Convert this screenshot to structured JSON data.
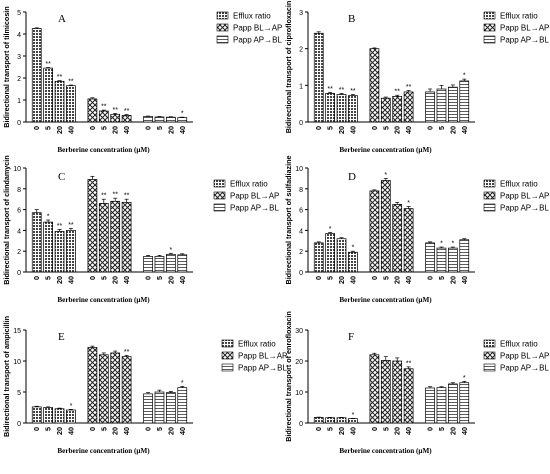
{
  "figure": {
    "legend_labels": [
      "Efflux ratio",
      "Papp BL→AP",
      "Papp AP→BL"
    ],
    "group_names": [
      "Efflux ratio",
      "Papp BL→AP",
      "Papp AP→BL"
    ]
  },
  "chart_data": [
    {
      "type": "bar",
      "panel_letter": "A",
      "ylabel": "Bidirectional transport of tilmicosin",
      "xlabel": "Berberine concentration (μM)",
      "categories": [
        "0",
        "5",
        "20",
        "40"
      ],
      "ylim": [
        0,
        5
      ],
      "yticks": [
        0,
        1,
        2,
        3,
        4,
        5
      ],
      "series": [
        {
          "name": "Efflux ratio",
          "values": [
            4.25,
            2.45,
            1.85,
            1.65
          ],
          "errors": [
            0.03,
            0.03,
            0.03,
            0.03
          ],
          "marks": [
            "",
            "**",
            "**",
            "**"
          ]
        },
        {
          "name": "Papp BL→AP",
          "values": [
            1.05,
            0.5,
            0.35,
            0.3
          ],
          "errors": [
            0.05,
            0.04,
            0.04,
            0.04
          ],
          "marks": [
            "",
            "**",
            "**",
            "**"
          ]
        },
        {
          "name": "Papp AP→BL",
          "values": [
            0.25,
            0.23,
            0.22,
            0.2
          ],
          "errors": [
            0.02,
            0.02,
            0.02,
            0.02
          ],
          "marks": [
            "",
            "",
            "",
            "*"
          ]
        }
      ]
    },
    {
      "type": "bar",
      "panel_letter": "B",
      "ylabel": "Bidirectional transport of ciprofloxacin",
      "xlabel": "Berberine concentration (μM)",
      "categories": [
        "0",
        "5",
        "20",
        "40"
      ],
      "ylim": [
        0,
        3
      ],
      "yticks": [
        0,
        1,
        2,
        3
      ],
      "series": [
        {
          "name": "Efflux ratio",
          "values": [
            2.42,
            0.78,
            0.75,
            0.72
          ],
          "errors": [
            0.04,
            0.03,
            0.03,
            0.03
          ],
          "marks": [
            "",
            "**",
            "**",
            "**"
          ]
        },
        {
          "name": "Papp BL→AP",
          "values": [
            2.0,
            0.65,
            0.7,
            0.82
          ],
          "errors": [
            0.02,
            0.03,
            0.03,
            0.04
          ],
          "marks": [
            "",
            "",
            "**",
            "**"
          ]
        },
        {
          "name": "Papp AP→BL",
          "values": [
            0.82,
            0.9,
            0.95,
            1.12
          ],
          "errors": [
            0.08,
            0.1,
            0.06,
            0.05
          ],
          "marks": [
            "",
            "",
            "",
            "*"
          ]
        }
      ]
    },
    {
      "type": "bar",
      "panel_letter": "C",
      "ylabel": "Bidirectional transport of clindamycin",
      "xlabel": "Berberine concentration (μM)",
      "categories": [
        "0",
        "5",
        "20",
        "40"
      ],
      "ylim": [
        0,
        10
      ],
      "yticks": [
        0,
        2,
        4,
        6,
        8,
        10
      ],
      "series": [
        {
          "name": "Efflux ratio",
          "values": [
            5.7,
            4.8,
            3.9,
            4.0
          ],
          "errors": [
            0.3,
            0.2,
            0.2,
            0.2
          ],
          "marks": [
            "",
            "*",
            "**",
            "**"
          ]
        },
        {
          "name": "Papp BL→AP",
          "values": [
            8.9,
            6.6,
            6.8,
            6.7
          ],
          "errors": [
            0.3,
            0.4,
            0.3,
            0.3
          ],
          "marks": [
            "",
            "**",
            "**",
            "**"
          ]
        },
        {
          "name": "Papp AP→BL",
          "values": [
            1.5,
            1.5,
            1.7,
            1.65
          ],
          "errors": [
            0.1,
            0.1,
            0.1,
            0.1
          ],
          "marks": [
            "",
            "",
            "*",
            ""
          ]
        }
      ]
    },
    {
      "type": "bar",
      "panel_letter": "D",
      "ylabel": "Bidirectional transport of sulfadiazine",
      "xlabel": "Berberine concentration (μM)",
      "categories": [
        "0",
        "5",
        "20",
        "40"
      ],
      "ylim": [
        0,
        10
      ],
      "yticks": [
        0,
        2,
        4,
        6,
        8,
        10
      ],
      "series": [
        {
          "name": "Efflux ratio",
          "values": [
            2.8,
            3.7,
            3.2,
            1.9
          ],
          "errors": [
            0.1,
            0.1,
            0.1,
            0.1
          ],
          "marks": [
            "",
            "*",
            "",
            "*"
          ]
        },
        {
          "name": "Papp BL→AP",
          "values": [
            7.8,
            8.8,
            6.5,
            6.1
          ],
          "errors": [
            0.1,
            0.2,
            0.2,
            0.2
          ],
          "marks": [
            "",
            "*",
            "",
            "*"
          ]
        },
        {
          "name": "Papp AP→BL",
          "values": [
            2.8,
            2.3,
            2.3,
            3.1
          ],
          "errors": [
            0.1,
            0.1,
            0.1,
            0.1
          ],
          "marks": [
            "",
            "*",
            "*",
            ""
          ]
        }
      ]
    },
    {
      "type": "bar",
      "panel_letter": "E",
      "ylabel": "Bidirectional transport of ampicillin",
      "xlabel": "Berberine concentration (μM)",
      "categories": [
        "0",
        "5",
        "20",
        "40"
      ],
      "ylim": [
        0,
        15
      ],
      "yticks": [
        0,
        5,
        10,
        15
      ],
      "series": [
        {
          "name": "Efflux ratio",
          "values": [
            2.6,
            2.5,
            2.3,
            2.1
          ],
          "errors": [
            0.1,
            0.1,
            0.1,
            0.1
          ],
          "marks": [
            "",
            "",
            "",
            "*"
          ]
        },
        {
          "name": "Papp BL→AP",
          "values": [
            12.2,
            11.0,
            11.3,
            10.7
          ],
          "errors": [
            0.2,
            0.3,
            0.3,
            0.2
          ],
          "marks": [
            "",
            "",
            "",
            "**"
          ]
        },
        {
          "name": "Papp AP→BL",
          "values": [
            4.7,
            5.0,
            4.9,
            5.7
          ],
          "errors": [
            0.2,
            0.3,
            0.2,
            0.2
          ],
          "marks": [
            "",
            "",
            "",
            "*"
          ]
        }
      ]
    },
    {
      "type": "bar",
      "panel_letter": "F",
      "ylabel": "Bidirectional transport of enrofloxacin",
      "xlabel": "Berberine concentration (μM)",
      "categories": [
        "0",
        "5",
        "20",
        "40"
      ],
      "ylim": [
        0,
        30
      ],
      "yticks": [
        0,
        10,
        20,
        30
      ],
      "series": [
        {
          "name": "Efflux ratio",
          "values": [
            1.8,
            1.7,
            1.7,
            1.4
          ],
          "errors": [
            0.1,
            0.1,
            0.1,
            0.1
          ],
          "marks": [
            "",
            "",
            "",
            "*"
          ]
        },
        {
          "name": "Papp BL→AP",
          "values": [
            22.0,
            20.2,
            20.0,
            17.5
          ],
          "errors": [
            0.5,
            1.2,
            1.0,
            0.6
          ],
          "marks": [
            "",
            "",
            "",
            "**"
          ]
        },
        {
          "name": "Papp AP→BL",
          "values": [
            11.3,
            11.4,
            12.6,
            13.0
          ],
          "errors": [
            0.4,
            0.3,
            0.4,
            0.4
          ],
          "marks": [
            "",
            "",
            "",
            "*"
          ]
        }
      ]
    }
  ]
}
